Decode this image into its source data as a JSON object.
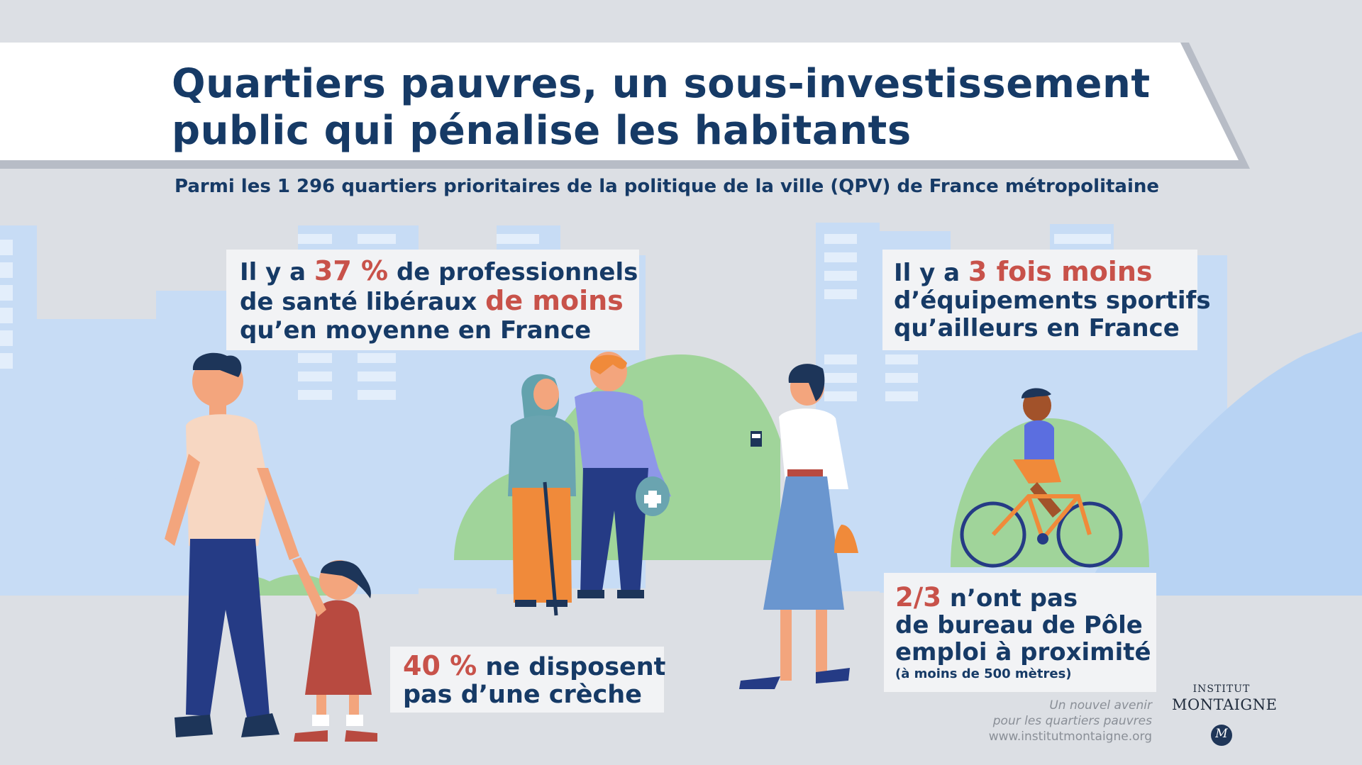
{
  "header": {
    "title_line1": "Quartiers pauvres, un sous-investissement",
    "title_line2": "public qui pénalise les habitants",
    "subtitle": "Parmi les 1 296 quartiers prioritaires de la politique de la ville (QPV) de France métropolitaine"
  },
  "stats": {
    "health": {
      "prefix": "Il y a ",
      "value": "37 %",
      "mid": " de professionnels",
      "line2_start": "de santé libéraux ",
      "highlight": "de moins",
      "line3": "qu’en moyenne en France"
    },
    "sports": {
      "prefix": "Il y a ",
      "highlight": "3 fois moins",
      "line2": "d’équipements sportifs",
      "line3": "qu’ailleurs en France"
    },
    "creche": {
      "value": "40 %",
      "rest": " ne disposent",
      "line2": "pas d’une crèche"
    },
    "pole_emploi": {
      "value": "2/3",
      "rest": " n’ont pas",
      "line2": "de bureau de Pôle",
      "line3": "emploi à proximité",
      "note": "(à moins de 500 mètres)"
    }
  },
  "source": {
    "line1": "Un nouvel avenir",
    "line2": "pour les quartiers pauvres",
    "url": "www.institutmontaigne.org"
  },
  "logo": {
    "line1": "INSTITUT",
    "line2": "MONTAIGNE",
    "monogram": "M"
  },
  "colors": {
    "navy": "#163a66",
    "accent_red": "#c8524a",
    "background": "#dcdfe4",
    "building_blue": "#c7dcf5",
    "green": "#a0d49a"
  },
  "icons": [
    "pharmacy-cross-icon",
    "bicycle-icon",
    "coffee-cup-icon",
    "institut-montaigne-seal-icon"
  ]
}
